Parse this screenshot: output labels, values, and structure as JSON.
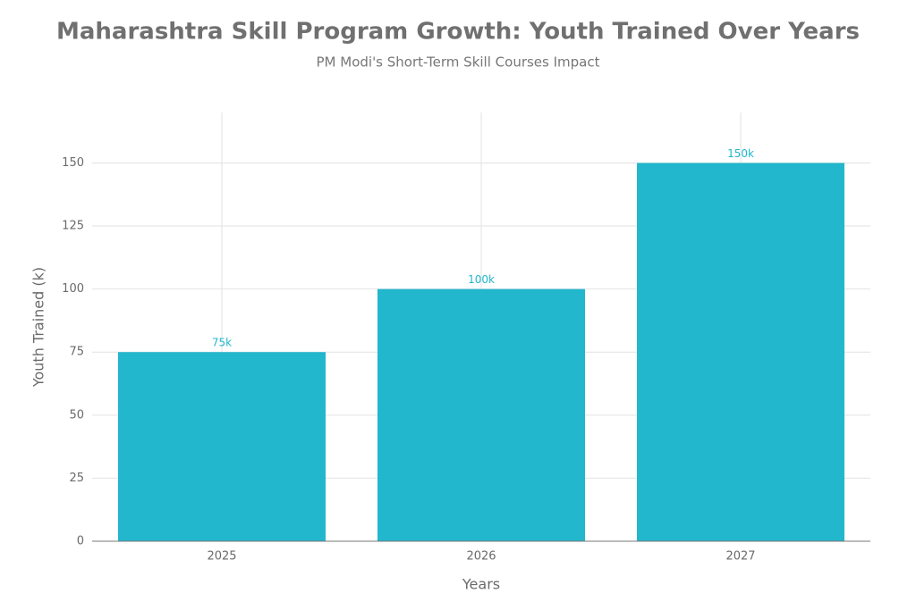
{
  "chart_data": {
    "type": "bar",
    "title": "Maharashtra Skill Program Growth: Youth Trained Over Years",
    "subtitle": "PM Modi's Short-Term Skill Courses Impact",
    "x_label": "Years",
    "y_label": "Youth Trained (k)",
    "categories": [
      "2025",
      "2026",
      "2027"
    ],
    "values": [
      75,
      100,
      150
    ],
    "value_labels": [
      "75k",
      "100k",
      "150k"
    ],
    "color": "#22b7cc",
    "ylim": [
      0,
      170
    ],
    "yticks": [
      0,
      25,
      50,
      75,
      100,
      125,
      150
    ],
    "grid": true
  }
}
